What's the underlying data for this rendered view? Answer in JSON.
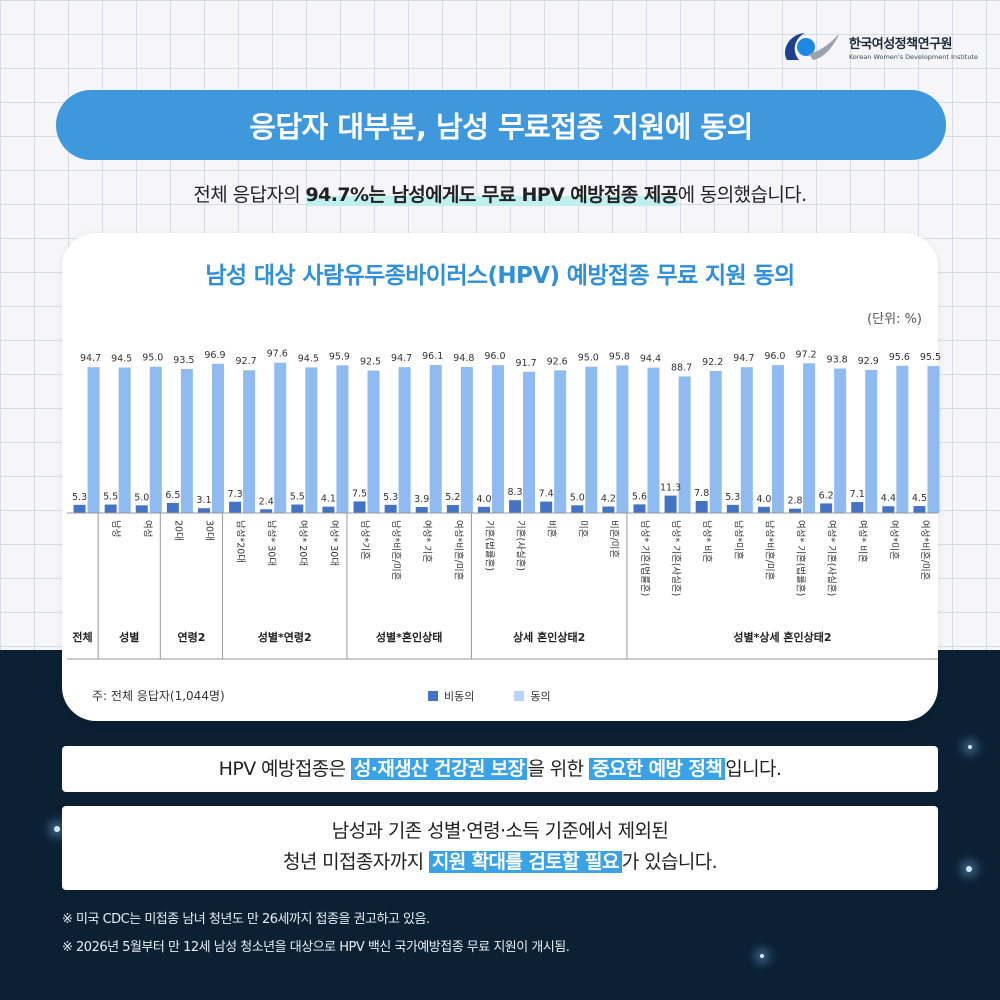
{
  "logo": {
    "name_ko": "한국여성정책연구원",
    "name_en": "Korean Women's Development Institute"
  },
  "header": {
    "title": "응답자 대부분, 남성 무료접종 지원에 동의"
  },
  "summary": {
    "pre": "전체 응답자의 ",
    "highlight": "94.7%는 남성에게도 무료 HPV 예방접종 제공",
    "post": "에 동의했습니다."
  },
  "chart_data": {
    "type": "bar",
    "title": "남성 대상 사람유두종바이러스(HPV) 예방접종 무료 지원 동의",
    "unit": "(단위: %)",
    "categories": [
      "",
      "남성",
      "여성",
      "20대",
      "30대",
      "남성*20대",
      "남성* 30대",
      "여성* 20대",
      "여성* 30대",
      "남성*기혼",
      "남성*비혼/미혼",
      "여성* 기혼",
      "여성*비혼/미혼",
      "기혼(법률혼)",
      "기혼(사실혼)",
      "비혼",
      "미혼",
      "비혼/미혼",
      "남성* 기혼(법률혼)",
      "남성* 기혼(사실혼)",
      "남성* 비혼",
      "남성*미혼",
      "남성*비혼/미혼",
      "여성* 기혼(법률혼)",
      "여성* 기혼(사실혼)",
      "여성* 비혼",
      "여성*미혼",
      "여성*비혼/미혼"
    ],
    "groups": [
      {
        "label": "전체",
        "count": 1
      },
      {
        "label": "성별",
        "count": 2
      },
      {
        "label": "연령2",
        "count": 2
      },
      {
        "label": "성별*연령2",
        "count": 4
      },
      {
        "label": "성별*혼인상태",
        "count": 4
      },
      {
        "label": "상세 혼인상태2",
        "count": 5
      },
      {
        "label": "성별*상세 혼인상태2",
        "count": 10
      }
    ],
    "series": [
      {
        "name": "비동의",
        "color": "#4472c4",
        "values": [
          5.3,
          5.5,
          5.0,
          6.5,
          3.1,
          7.3,
          2.4,
          5.5,
          4.1,
          7.5,
          5.3,
          3.9,
          5.2,
          4.0,
          8.3,
          7.4,
          5.0,
          4.2,
          5.6,
          11.3,
          7.8,
          5.3,
          4.0,
          2.8,
          6.2,
          7.1,
          4.4,
          4.5
        ]
      },
      {
        "name": "동의",
        "color": "#8fbbf0",
        "values": [
          94.7,
          94.5,
          95.0,
          93.5,
          96.9,
          92.7,
          97.6,
          94.5,
          95.9,
          92.5,
          94.7,
          96.1,
          94.8,
          96.0,
          91.7,
          92.6,
          95.0,
          95.8,
          94.4,
          88.7,
          92.2,
          94.7,
          96.0,
          97.2,
          93.8,
          92.9,
          95.6,
          95.5
        ]
      }
    ],
    "ylim": [
      0,
      100
    ],
    "note": "주: 전체 응답자(1,044명)"
  },
  "box1": {
    "pre": "HPV 예방접종은 ",
    "hl1": "성·재생산 건강권 보장",
    "mid": "을 위한 ",
    "hl2": "중요한 예방 정책",
    "post": "입니다."
  },
  "box2": {
    "line1": "남성과 기존 성별·연령·소득 기준에서 제외된",
    "line2_pre": "청년 미접종자까지 ",
    "line2_hl": "지원 확대를 검토할 필요",
    "line2_post": "가 있습니다."
  },
  "footnotes": [
    "※ 미국 CDC는 미접종 남녀 청년도 만 26세까지 접종을 권고하고 있음.",
    "※ 2026년 5월부터 만 12세 남성 청소년을 대상으로 HPV 백신 국가예방접종 무료 지원이 개시됨."
  ]
}
